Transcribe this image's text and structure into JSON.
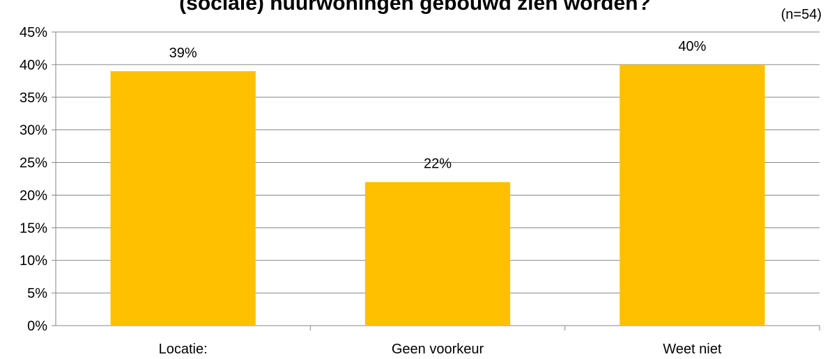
{
  "chart_data": {
    "type": "bar",
    "title": "(sociale) huurwoningen gebouwd zien worden?",
    "note": "(n=54)",
    "categories": [
      "Locatie:",
      "Geen voorkeur",
      "Weet niet"
    ],
    "values": [
      39,
      22,
      40
    ],
    "value_labels": [
      "39%",
      "22%",
      "40%"
    ],
    "ylim": [
      0,
      45
    ],
    "yticks": [
      "0%",
      "5%",
      "10%",
      "15%",
      "20%",
      "25%",
      "30%",
      "35%",
      "40%",
      "45%"
    ],
    "grid": true,
    "legend": "none",
    "bar_color": "#FFC000",
    "grid_color": "#868686"
  }
}
